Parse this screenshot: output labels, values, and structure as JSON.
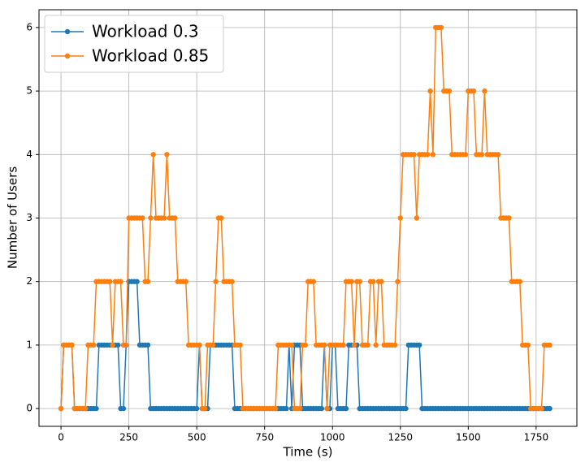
{
  "chart_data": {
    "type": "line",
    "xlabel": "Time (s)",
    "ylabel": "Number of Users",
    "x": [
      0,
      10,
      20,
      30,
      40,
      50,
      60,
      70,
      80,
      90,
      100,
      110,
      120,
      130,
      140,
      150,
      160,
      170,
      180,
      190,
      200,
      210,
      220,
      230,
      240,
      250,
      260,
      270,
      280,
      290,
      300,
      310,
      320,
      330,
      340,
      350,
      360,
      370,
      380,
      390,
      400,
      410,
      420,
      430,
      440,
      450,
      460,
      470,
      480,
      490,
      500,
      510,
      520,
      530,
      540,
      550,
      560,
      570,
      580,
      590,
      600,
      610,
      620,
      630,
      640,
      650,
      660,
      670,
      680,
      690,
      700,
      710,
      720,
      730,
      740,
      750,
      760,
      770,
      780,
      790,
      800,
      810,
      820,
      830,
      840,
      850,
      860,
      870,
      880,
      890,
      900,
      910,
      920,
      930,
      940,
      950,
      960,
      970,
      980,
      990,
      1000,
      1010,
      1020,
      1030,
      1040,
      1050,
      1060,
      1070,
      1080,
      1090,
      1100,
      1110,
      1120,
      1130,
      1140,
      1150,
      1160,
      1170,
      1180,
      1190,
      1200,
      1210,
      1220,
      1230,
      1240,
      1250,
      1260,
      1270,
      1280,
      1290,
      1300,
      1310,
      1320,
      1330,
      1340,
      1350,
      1360,
      1370,
      1380,
      1390,
      1400,
      1410,
      1420,
      1430,
      1440,
      1450,
      1460,
      1470,
      1480,
      1490,
      1500,
      1510,
      1520,
      1530,
      1540,
      1550,
      1560,
      1570,
      1580,
      1590,
      1600,
      1610,
      1620,
      1630,
      1640,
      1650,
      1660,
      1670,
      1680,
      1690,
      1700,
      1710,
      1720,
      1730,
      1740,
      1750,
      1760,
      1770,
      1780,
      1790,
      1800
    ],
    "series": [
      {
        "name": "Workload 0.3",
        "color": "#1f77b4",
        "values": [
          0,
          1,
          1,
          1,
          1,
          0,
          0,
          0,
          0,
          0,
          0,
          0,
          0,
          0,
          1,
          1,
          1,
          1,
          1,
          1,
          1,
          1,
          0,
          0,
          1,
          2,
          2,
          2,
          2,
          1,
          1,
          1,
          1,
          0,
          0,
          0,
          0,
          0,
          0,
          0,
          0,
          0,
          0,
          0,
          0,
          0,
          0,
          0,
          0,
          0,
          0,
          1,
          0,
          0,
          0,
          1,
          1,
          1,
          1,
          1,
          1,
          1,
          1,
          1,
          0,
          0,
          0,
          0,
          0,
          0,
          0,
          0,
          0,
          0,
          0,
          0,
          0,
          0,
          0,
          0,
          0,
          0,
          0,
          0,
          1,
          0,
          1,
          1,
          1,
          0,
          0,
          0,
          0,
          0,
          0,
          0,
          0,
          1,
          0,
          0,
          1,
          1,
          0,
          0,
          0,
          0,
          1,
          1,
          1,
          1,
          0,
          0,
          0,
          0,
          0,
          0,
          0,
          0,
          0,
          0,
          0,
          0,
          0,
          0,
          0,
          0,
          0,
          0,
          1,
          1,
          1,
          1,
          1,
          0,
          0,
          0,
          0,
          0,
          0,
          0,
          0,
          0,
          0,
          0,
          0,
          0,
          0,
          0,
          0,
          0,
          0,
          0,
          0,
          0,
          0,
          0,
          0,
          0,
          0,
          0,
          0,
          0,
          0,
          0,
          0,
          0,
          0,
          0,
          0,
          0,
          0,
          0,
          0,
          0,
          0,
          0,
          0,
          0,
          0,
          0,
          0
        ]
      },
      {
        "name": "Workload 0.85",
        "color": "#ff7f0e",
        "values": [
          0,
          1,
          1,
          1,
          1,
          0,
          0,
          0,
          0,
          0,
          1,
          1,
          1,
          2,
          2,
          2,
          2,
          2,
          2,
          1,
          2,
          2,
          2,
          1,
          1,
          3,
          3,
          3,
          3,
          3,
          3,
          2,
          2,
          3,
          4,
          3,
          3,
          3,
          3,
          4,
          3,
          3,
          3,
          2,
          2,
          2,
          2,
          1,
          1,
          1,
          1,
          1,
          0,
          0,
          1,
          1,
          1,
          2,
          3,
          3,
          2,
          2,
          2,
          2,
          1,
          1,
          1,
          0,
          0,
          0,
          0,
          0,
          0,
          0,
          0,
          0,
          0,
          0,
          0,
          0,
          1,
          1,
          1,
          1,
          1,
          1,
          0,
          0,
          0,
          1,
          1,
          2,
          2,
          2,
          1,
          1,
          1,
          1,
          0,
          1,
          1,
          1,
          1,
          1,
          1,
          2,
          2,
          2,
          1,
          2,
          2,
          1,
          1,
          1,
          2,
          2,
          1,
          2,
          2,
          1,
          1,
          1,
          1,
          1,
          2,
          3,
          4,
          4,
          4,
          4,
          4,
          3,
          4,
          4,
          4,
          4,
          5,
          4,
          6,
          6,
          6,
          5,
          5,
          5,
          4,
          4,
          4,
          4,
          4,
          4,
          5,
          5,
          5,
          4,
          4,
          4,
          5,
          4,
          4,
          4,
          4,
          4,
          3,
          3,
          3,
          3,
          2,
          2,
          2,
          2,
          1,
          1,
          1,
          0,
          0,
          0,
          0,
          0,
          1,
          1,
          1
        ]
      }
    ],
    "xlim": [
      -81,
      1900
    ],
    "ylim": [
      -0.28,
      6.28
    ],
    "xticks": [
      0,
      250,
      500,
      750,
      1000,
      1250,
      1500,
      1750
    ],
    "yticks": [
      0,
      1,
      2,
      3,
      4,
      5,
      6
    ],
    "grid": true,
    "legend": "upper left"
  }
}
